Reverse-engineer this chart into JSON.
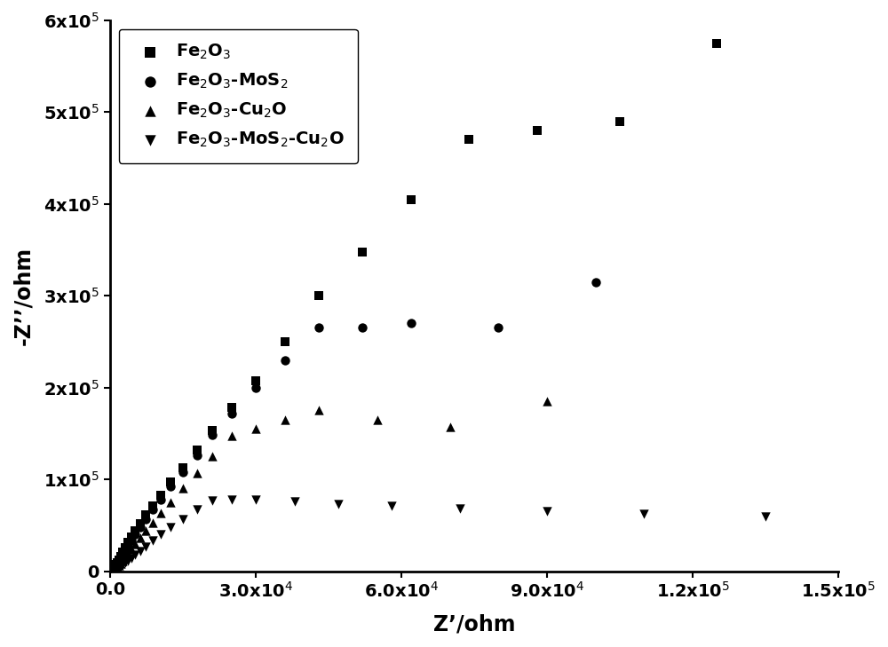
{
  "title": "",
  "xlabel": "Z’/ohm",
  "ylabel": "-Z’’/ohm",
  "xlim": [
    0,
    150000
  ],
  "ylim": [
    0,
    600000
  ],
  "xticks": [
    0,
    30000,
    60000,
    90000,
    120000,
    150000
  ],
  "yticks": [
    0,
    100000,
    200000,
    300000,
    400000,
    500000,
    600000
  ],
  "xtick_labels": [
    "0.0",
    "3.0x10$^{4}$",
    "6.0x10$^{4}$",
    "9.0x10$^{4}$",
    "1.2x10$^{5}$",
    "1.5x10$^{5}$"
  ],
  "ytick_labels": [
    "0",
    "1x10$^{5}$",
    "2x10$^{5}$",
    "3x10$^{5}$",
    "4x10$^{5}$",
    "5x10$^{5}$",
    "6x10$^{5}$"
  ],
  "series": [
    {
      "label": "Fe$_{2}$O$_{3}$",
      "marker": "s",
      "color": "black",
      "x": [
        200,
        400,
        600,
        800,
        1000,
        1200,
        1500,
        1800,
        2200,
        2600,
        3100,
        3700,
        4400,
        5200,
        6200,
        7400,
        8800,
        10500,
        12500,
        15000,
        18000,
        21000,
        25000,
        30000,
        36000,
        43000,
        52000,
        62000,
        74000,
        88000,
        105000,
        125000,
        142000
      ],
      "y": [
        500,
        1200,
        2200,
        3500,
        5000,
        7000,
        9500,
        12500,
        16000,
        20500,
        25500,
        31000,
        37000,
        44000,
        52000,
        61000,
        71000,
        83000,
        97000,
        113000,
        132000,
        153000,
        178000,
        207000,
        250000,
        300000,
        348000,
        405000,
        470000,
        480000,
        490000,
        575000,
        0
      ]
    },
    {
      "label": "Fe$_{2}$O$_{3}$-MoS$_{2}$",
      "marker": "o",
      "color": "black",
      "x": [
        200,
        400,
        600,
        800,
        1000,
        1200,
        1500,
        1800,
        2200,
        2600,
        3100,
        3700,
        4400,
        5200,
        6200,
        7400,
        8800,
        10500,
        12500,
        15000,
        18000,
        21000,
        25000,
        30000,
        36000,
        43000,
        52000,
        62000,
        80000,
        100000,
        140000
      ],
      "y": [
        300,
        800,
        1500,
        2500,
        3800,
        5500,
        7500,
        10000,
        13500,
        17500,
        22000,
        27500,
        33500,
        40000,
        48000,
        57000,
        67000,
        78000,
        92000,
        108000,
        126000,
        148000,
        172000,
        200000,
        230000,
        265000,
        265000,
        270000,
        265000,
        315000,
        0
      ]
    },
    {
      "label": "Fe$_{2}$O$_{3}$-Cu$_{2}$O",
      "marker": "^",
      "color": "black",
      "x": [
        200,
        400,
        600,
        800,
        1000,
        1200,
        1500,
        1800,
        2200,
        2600,
        3100,
        3700,
        4400,
        5200,
        6200,
        7400,
        8800,
        10500,
        12500,
        15000,
        18000,
        21000,
        25000,
        30000,
        36000,
        43000,
        55000,
        70000,
        90000,
        120000
      ],
      "y": [
        150,
        400,
        800,
        1400,
        2200,
        3200,
        4600,
        6300,
        8700,
        11500,
        15000,
        19000,
        24000,
        29500,
        36000,
        44000,
        53000,
        63000,
        75000,
        90000,
        107000,
        125000,
        147000,
        155000,
        165000,
        175000,
        165000,
        157000,
        185000,
        0
      ]
    },
    {
      "label": "Fe$_{2}$O$_{3}$-MoS$_{2}$-Cu$_{2}$O",
      "marker": "v",
      "color": "black",
      "x": [
        200,
        400,
        600,
        800,
        1000,
        1200,
        1500,
        1800,
        2200,
        2600,
        3100,
        3700,
        4400,
        5200,
        6200,
        7400,
        8800,
        10500,
        12500,
        15000,
        18000,
        21000,
        25000,
        30000,
        38000,
        47000,
        58000,
        72000,
        90000,
        110000,
        135000
      ],
      "y": [
        80,
        200,
        400,
        700,
        1100,
        1700,
        2500,
        3500,
        5000,
        6800,
        9000,
        11500,
        14500,
        18000,
        22000,
        27000,
        33000,
        40000,
        48000,
        57000,
        67000,
        77000,
        78000,
        78000,
        76000,
        73000,
        71000,
        68000,
        65000,
        62000,
        59000
      ]
    }
  ],
  "markersize_scatter": 56,
  "background_color": "#ffffff",
  "fontsize_label": 17,
  "fontsize_tick": 14,
  "fontsize_legend": 14
}
